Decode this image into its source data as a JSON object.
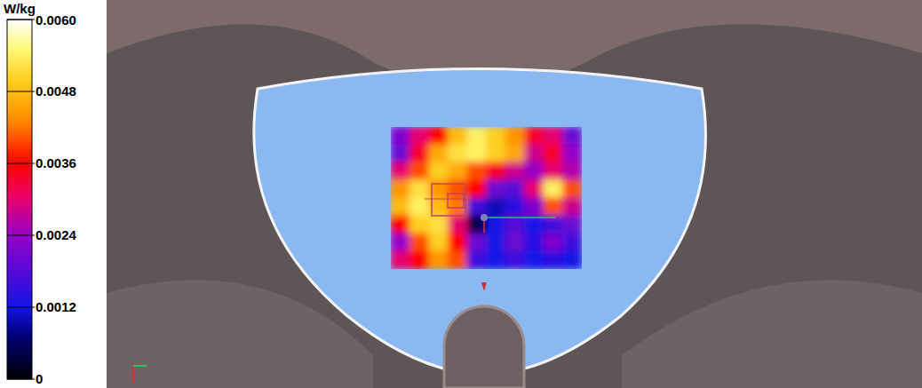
{
  "chart_data": {
    "type": "heatmap",
    "colorbar_label": "W/kg",
    "color_range": [
      0,
      0.006
    ],
    "color_ticks": [
      0,
      0.0012,
      0.0024,
      0.0036,
      0.0048,
      {
        "value": 0.006,
        "label": "0.0060"
      }
    ],
    "tick_labels": false,
    "cells": [
      [
        0.0022,
        0.003,
        0.0036,
        0.0048,
        0.0054,
        0.005,
        0.0044,
        0.0034,
        0.003,
        0.002
      ],
      [
        0.002,
        0.0034,
        0.0046,
        0.0052,
        0.0054,
        0.005,
        0.0046,
        0.0028,
        0.0034,
        0.0024
      ],
      [
        0.003,
        0.004,
        0.005,
        0.0046,
        0.004,
        0.0034,
        0.0028,
        0.0024,
        0.003,
        0.0026
      ],
      [
        0.0044,
        0.0052,
        0.0044,
        0.004,
        0.0036,
        0.002,
        0.0018,
        0.003,
        0.0054,
        0.004
      ],
      [
        0.0048,
        0.0054,
        0.0048,
        0.0042,
        0.0016,
        0.001,
        0.0014,
        0.0022,
        0.004,
        0.0028
      ],
      [
        0.0036,
        0.005,
        0.0052,
        0.003,
        0.0004,
        0.0012,
        0.0018,
        0.0012,
        0.0016,
        0.002
      ],
      [
        0.0024,
        0.004,
        0.005,
        0.0036,
        0.002,
        0.0012,
        0.002,
        0.0014,
        0.0022,
        0.0016
      ],
      [
        0.003,
        0.0036,
        0.0044,
        0.004,
        0.0016,
        0.0012,
        0.0016,
        0.0012,
        0.0014,
        0.0012
      ]
    ]
  }
}
